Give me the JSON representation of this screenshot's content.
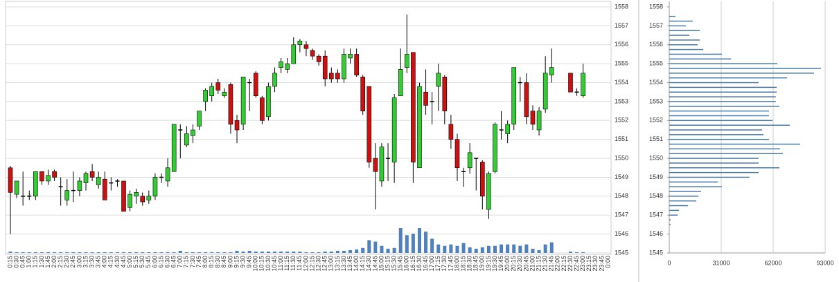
{
  "chart_data": [
    {
      "type": "candlestick",
      "x": [
        "0:15",
        "0:30",
        "0:45",
        "1:00",
        "1:15",
        "1:30",
        "1:45",
        "2:00",
        "2:15",
        "2:30",
        "2:45",
        "3:00",
        "3:15",
        "3:30",
        "3:45",
        "4:00",
        "4:15",
        "4:30",
        "4:45",
        "5:00",
        "5:15",
        "5:30",
        "5:45",
        "6:00",
        "6:15",
        "6:30",
        "6:45",
        "7:00",
        "7:15",
        "7:30",
        "7:45",
        "8:00",
        "8:15",
        "8:30",
        "8:45",
        "9:00",
        "9:15",
        "9:30",
        "9:45",
        "10:00",
        "10:15",
        "10:30",
        "10:45",
        "11:00",
        "11:15",
        "11:30",
        "11:45",
        "12:00",
        "12:15",
        "12:30",
        "12:45",
        "13:00",
        "13:15",
        "13:30",
        "13:45",
        "14:00",
        "14:15",
        "14:30",
        "14:45",
        "15:00",
        "15:15",
        "15:30",
        "15:45",
        "16:00",
        "16:15",
        "16:30",
        "16:45",
        "17:00",
        "17:15",
        "17:30",
        "17:45",
        "18:00",
        "18:15",
        "18:30",
        "18:45",
        "19:00",
        "19:15",
        "19:30",
        "19:45",
        "20:00",
        "20:15",
        "20:30",
        "20:45",
        "21:00",
        "21:15",
        "21:30",
        "21:45",
        "22:00",
        "22:15",
        "22:30",
        "22:45",
        "23:00",
        "23:15",
        "23:30",
        "23:45",
        "0:00"
      ],
      "open": [
        1549.5,
        1548.1,
        1548,
        1548,
        1548,
        1549.3,
        1548.8,
        1549.3,
        1548.5,
        1547.8,
        1548.3,
        1548.3,
        1548.7,
        1549.3,
        1548.6,
        1548.9,
        1548.7,
        1548.8,
        1548.8,
        1547.4,
        1548,
        1548,
        1547.8,
        1548,
        1549,
        1548.8,
        1549.3,
        1551.5,
        1550.7,
        1551.2,
        1551.7,
        1553,
        1553.3,
        1554,
        1553.3,
        1553.9,
        1552,
        1551.8,
        1554,
        1554.5,
        1553.2,
        1552.2,
        1553.8,
        1554.8,
        1554.7,
        1555,
        1556,
        1556,
        1555.7,
        1555.4,
        1555.4,
        1554.5,
        1554.5,
        1554.2,
        1555.3,
        1555.5,
        1554.3,
        1553.8,
        1550,
        1548.8,
        1550,
        1549.8,
        1553.3,
        1554.8,
        1555.6,
        1549.5,
        1553.5,
        1553,
        1553.8,
        1554.3,
        1551.8,
        1551,
        1549.3,
        1549.5,
        1550,
        1549.8,
        1547.3,
        1549.3,
        1551.5,
        1551.3,
        1551.8,
        1554,
        1554,
        1552.5,
        1551.5,
        1552.6,
        1554.4,
        null,
        null,
        1554.5,
        1553.5,
        1553.3,
        null,
        null,
        null,
        null
      ],
      "high": [
        1549.6,
        1548.8,
        1549.3,
        1548.3,
        1549.3,
        1549.3,
        1549.4,
        1549.4,
        1549,
        1548.9,
        1549.3,
        1549,
        1549.3,
        1549.7,
        1549.3,
        1549.3,
        1549,
        1548.9,
        1548.8,
        1548.3,
        1548.4,
        1548.2,
        1548.3,
        1549.2,
        1549.2,
        1550,
        1551.8,
        1551.8,
        1551.7,
        1551.8,
        1552.5,
        1553.7,
        1554,
        1554.2,
        1553.7,
        1554,
        1552.3,
        1554.3,
        1554.2,
        1554.6,
        1553.3,
        1554,
        1554.8,
        1555.3,
        1555.3,
        1556.4,
        1556.3,
        1556.2,
        1555.8,
        1555.5,
        1555.7,
        1554.8,
        1554.7,
        1555.8,
        1555.8,
        1555.8,
        1554.4,
        1553.8,
        1550.8,
        1550.8,
        1550.8,
        1553.4,
        1555.8,
        1557.6,
        1555.6,
        1554,
        1554.7,
        1553.5,
        1555,
        1554.4,
        1552.3,
        1551.3,
        1549.5,
        1550.8,
        1550,
        1549.9,
        1549.3,
        1551.9,
        1552.5,
        1552,
        1554.8,
        1554.3,
        1554.5,
        1552.8,
        1552.7,
        1555.4,
        1555.8,
        null,
        null,
        1554.5,
        1553.7,
        1555,
        null,
        null,
        null,
        null
      ],
      "low": [
        1546,
        1547.9,
        1547.5,
        1547.8,
        1547.8,
        1548.6,
        1548.6,
        1548.8,
        1547.5,
        1547.5,
        1547.7,
        1548,
        1548.3,
        1548.8,
        1548.4,
        1547.8,
        1548.3,
        1548.5,
        1547.2,
        1547.2,
        1547.6,
        1547.5,
        1547.6,
        1547.8,
        1548.7,
        1548.5,
        1549.3,
        1550,
        1550.6,
        1550.8,
        1551.5,
        1552.5,
        1553,
        1553.4,
        1553.2,
        1551.3,
        1550.8,
        1551.5,
        1552.5,
        1553.2,
        1551.8,
        1552,
        1553.5,
        1554.5,
        1554.5,
        1555,
        1555.6,
        1555.4,
        1555.2,
        1554.9,
        1553.8,
        1554,
        1554,
        1554,
        1555,
        1554.3,
        1552.3,
        1549.5,
        1547.3,
        1548.5,
        1548.8,
        1548.7,
        1553.3,
        1554.5,
        1548.7,
        1549.5,
        1552.3,
        1551.8,
        1552.5,
        1551.8,
        1550.5,
        1548.8,
        1548.5,
        1549.2,
        1548.3,
        1547.3,
        1546.8,
        1549.2,
        1551,
        1550.8,
        1551.5,
        1553,
        1551.8,
        1551.5,
        1551.2,
        1552.4,
        1554,
        null,
        null,
        1553.5,
        1553.3,
        1553.2,
        null,
        null,
        null,
        null
      ],
      "close": [
        1548.2,
        1548.8,
        1548,
        1548,
        1549.3,
        1548.8,
        1549.1,
        1549,
        1548.5,
        1548.3,
        1548.3,
        1548.8,
        1549.2,
        1549,
        1549,
        1547.8,
        1548.7,
        1548.8,
        1547.2,
        1548.1,
        1548.2,
        1547.7,
        1548,
        1549,
        1549,
        1549.5,
        1551.8,
        1551.5,
        1551.3,
        1551.5,
        1552.5,
        1553.6,
        1553.8,
        1553.6,
        1553.5,
        1551.8,
        1551.5,
        1554.3,
        1554,
        1553.3,
        1552,
        1553.8,
        1554.5,
        1555.1,
        1555,
        1556,
        1556.2,
        1555.8,
        1555.4,
        1555.1,
        1554.2,
        1554.2,
        1554.2,
        1555.5,
        1555.5,
        1554.4,
        1552.5,
        1549.8,
        1549.3,
        1550.6,
        1550,
        1553.2,
        1554.7,
        1555.5,
        1549.8,
        1553.8,
        1552.8,
        1553,
        1554.5,
        1552.5,
        1551,
        1549.5,
        1549.3,
        1550.3,
        1550,
        1548,
        1549.2,
        1551.8,
        1551.5,
        1551.8,
        1554.8,
        1554,
        1552.2,
        1551.8,
        1552.5,
        1554.5,
        1554.8,
        null,
        null,
        1553.5,
        1553.5,
        1554.5,
        null,
        null,
        null,
        null
      ],
      "volume": [
        2,
        1,
        1,
        1,
        1,
        1,
        1,
        1,
        1,
        1,
        1,
        1,
        1,
        1,
        1,
        1,
        1,
        1,
        1,
        1,
        1,
        1,
        1,
        1,
        1,
        1,
        1,
        3,
        1,
        1,
        1,
        1,
        1,
        1,
        1,
        1,
        3,
        2,
        3,
        2,
        2,
        2,
        2,
        2,
        2,
        2,
        2,
        1,
        1,
        1,
        2,
        2,
        3,
        3,
        4,
        5,
        7,
        18,
        16,
        10,
        6,
        7,
        35,
        25,
        27,
        35,
        30,
        20,
        12,
        10,
        12,
        10,
        14,
        8,
        6,
        8,
        10,
        10,
        12,
        12,
        12,
        10,
        12,
        6,
        4,
        12,
        15,
        null,
        null,
        2,
        1,
        1,
        null,
        null,
        null,
        null
      ],
      "up_color": "#33cc33",
      "down_color": "#cc1111",
      "volume_color": "#4f81bd",
      "ylim": [
        1545,
        1558
      ],
      "yticks": [
        1545,
        1546,
        1547,
        1548,
        1549,
        1550,
        1551,
        1552,
        1553,
        1554,
        1555,
        1556,
        1557,
        1558
      ],
      "grid": true
    },
    {
      "type": "bar",
      "orientation": "horizontal",
      "categories": [
        1557.5,
        1557.25,
        1557,
        1556.75,
        1556.5,
        1556.25,
        1556,
        1555.75,
        1555.5,
        1555.25,
        1555,
        1554.75,
        1554.5,
        1554.25,
        1554,
        1553.75,
        1553.5,
        1553.25,
        1553,
        1552.75,
        1552.5,
        1552.25,
        1552,
        1551.75,
        1551.5,
        1551.25,
        1551,
        1550.75,
        1550.5,
        1550.25,
        1550,
        1549.75,
        1549.5,
        1549.25,
        1549,
        1548.75,
        1548.5,
        1548.25,
        1548,
        1547.75,
        1547.5,
        1547.25,
        1547,
        1546.75,
        1546.5
      ],
      "values": [
        3700,
        14000,
        9900,
        18200,
        12000,
        18200,
        16900,
        20300,
        31400,
        36800,
        64500,
        90500,
        86400,
        70300,
        53300,
        64100,
        64100,
        63600,
        63600,
        65700,
        59500,
        59500,
        61600,
        71900,
        55400,
        56200,
        59500,
        78100,
        66100,
        67800,
        53300,
        53300,
        65700,
        53300,
        47900,
        28900,
        31400,
        19000,
        17400,
        16100,
        11200,
        5800,
        5000,
        800,
        800
      ],
      "color": "#4a7aa6",
      "xlim": [
        0,
        93000
      ],
      "xticks": [
        0,
        31000,
        62000,
        93000
      ],
      "ylim": [
        1545,
        1558
      ],
      "yticks": [
        1545,
        1546,
        1547,
        1548,
        1549,
        1550,
        1551,
        1552,
        1553,
        1554,
        1555,
        1556,
        1557,
        1558
      ],
      "grid": true
    }
  ]
}
